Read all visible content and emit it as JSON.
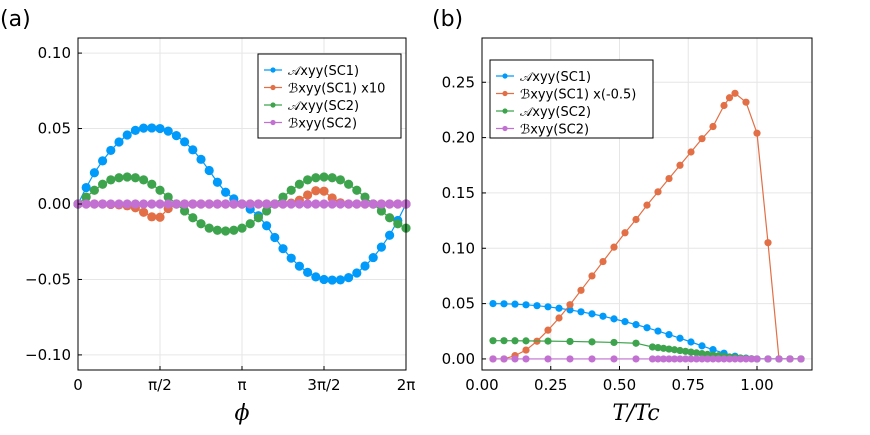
{
  "chart_data": [
    {
      "type": "scatter",
      "panel_label": "(a)",
      "xlabel": "ϕ",
      "ylabel": "",
      "xlim": [
        0,
        6.2832
      ],
      "ylim": [
        -0.11,
        0.11
      ],
      "x_tick_values": [
        0,
        1.5708,
        3.1416,
        4.7124,
        6.2832
      ],
      "x_tick_labels": [
        "0",
        "π/2",
        "π",
        "3π/2",
        "2π"
      ],
      "y_tick_values": [
        -0.1,
        -0.05,
        0.0,
        0.05,
        0.1
      ],
      "y_tick_labels": [
        "−0.10",
        "−0.05",
        "0.00",
        "0.05",
        "0.10"
      ],
      "grid": true,
      "legend_position": "top-right",
      "series": [
        {
          "name": "𝒜xyy(SC1)",
          "color": "#009AFA",
          "x": [
            0,
            0.1571,
            0.3142,
            0.4712,
            0.6283,
            0.7854,
            0.9425,
            1.0996,
            1.2566,
            1.4137,
            1.5708,
            1.7279,
            1.885,
            2.042,
            2.1991,
            2.3562,
            2.5133,
            2.6704,
            2.8274,
            2.9845,
            3.1416,
            3.2987,
            3.4558,
            3.6128,
            3.7699,
            3.927,
            4.0841,
            4.2412,
            4.3982,
            4.5553,
            4.7124,
            4.8695,
            5.0265,
            5.1836,
            5.3407,
            5.4978,
            5.6549,
            5.8119,
            5.969,
            6.1261,
            6.2832
          ],
          "y": [
            0,
            0.0109,
            0.0207,
            0.0286,
            0.0355,
            0.0411,
            0.0457,
            0.0488,
            0.0503,
            0.0504,
            0.05,
            0.0483,
            0.0453,
            0.0412,
            0.0359,
            0.0296,
            0.0222,
            0.0144,
            0.0078,
            0.0034,
            0,
            -0.0034,
            -0.0078,
            -0.0144,
            -0.0222,
            -0.0296,
            -0.0359,
            -0.0412,
            -0.0453,
            -0.0483,
            -0.05,
            -0.0504,
            -0.0503,
            -0.0488,
            -0.0457,
            -0.0411,
            -0.0355,
            -0.0286,
            -0.0207,
            -0.0109,
            0
          ]
        },
        {
          "name": "ℬxyy(SC1) x10",
          "color": "#E26F46",
          "x": [
            0,
            0.1571,
            0.3142,
            0.4712,
            0.6283,
            0.7854,
            0.9425,
            1.0996,
            1.2566,
            1.4137,
            1.5708,
            1.7279,
            1.885,
            2.042,
            2.1991,
            2.3562,
            2.5133,
            2.6704,
            2.8274,
            2.9845,
            3.1416,
            3.2987,
            3.4558,
            3.6128,
            3.7699,
            3.927,
            4.0841,
            4.2412,
            4.3982,
            4.5553,
            4.7124,
            4.8695,
            5.0265,
            5.1836,
            5.3407,
            5.4978,
            5.6549,
            5.8119,
            5.969,
            6.1261,
            6.2832
          ],
          "y": [
            0,
            0,
            0,
            0,
            -0.0003,
            -0.0006,
            -0.0012,
            -0.0025,
            -0.0055,
            -0.0085,
            -0.0088,
            -0.003,
            0,
            0,
            0,
            0,
            0,
            0,
            0,
            0,
            0,
            0,
            0,
            0,
            0,
            0,
            0.0006,
            0.0025,
            0.006,
            0.0088,
            0.0085,
            0.004,
            0.0008,
            0,
            0,
            0,
            0,
            0,
            0,
            0,
            0
          ]
        },
        {
          "name": "𝒜xyy(SC2)",
          "color": "#3DA44D",
          "x": [
            0,
            0.1571,
            0.3142,
            0.4712,
            0.6283,
            0.7854,
            0.9425,
            1.0996,
            1.2566,
            1.4137,
            1.5708,
            1.7279,
            1.885,
            2.042,
            2.1991,
            2.3562,
            2.5133,
            2.6704,
            2.8274,
            2.9845,
            3.1416,
            3.2987,
            3.4558,
            3.6128,
            3.7699,
            3.927,
            4.0841,
            4.2412,
            4.3982,
            4.5553,
            4.7124,
            4.8695,
            5.0265,
            5.1836,
            5.3407,
            5.4978,
            5.6549,
            5.8119,
            5.969,
            6.1261,
            6.2832
          ],
          "y": [
            0,
            0.0046,
            0.0091,
            0.0131,
            0.016,
            0.0174,
            0.0179,
            0.0174,
            0.016,
            0.0131,
            0.0091,
            0.0046,
            0,
            -0.0046,
            -0.0091,
            -0.0131,
            -0.016,
            -0.0174,
            -0.0179,
            -0.0174,
            -0.016,
            -0.0131,
            -0.0091,
            -0.0046,
            0,
            0.0046,
            0.0091,
            0.0131,
            0.016,
            0.0174,
            0.0179,
            0.0174,
            0.016,
            0.0131,
            0.0091,
            0.0046,
            0,
            -0.0046,
            -0.0091,
            -0.0131,
            -0.016
          ]
        },
        {
          "name": "ℬxyy(SC2)",
          "color": "#C271D2",
          "x": [
            0,
            0.1571,
            0.3142,
            0.4712,
            0.6283,
            0.7854,
            0.9425,
            1.0996,
            1.2566,
            1.4137,
            1.5708,
            1.7279,
            1.885,
            2.042,
            2.1991,
            2.3562,
            2.5133,
            2.6704,
            2.8274,
            2.9845,
            3.1416,
            3.2987,
            3.4558,
            3.6128,
            3.7699,
            3.927,
            4.0841,
            4.2412,
            4.3982,
            4.5553,
            4.7124,
            4.8695,
            5.0265,
            5.1836,
            5.3407,
            5.4978,
            5.6549,
            5.8119,
            5.969,
            6.1261,
            6.2832
          ],
          "y": [
            0,
            0,
            0,
            0,
            0,
            0,
            0,
            0,
            0,
            0,
            0,
            0,
            0,
            0,
            0,
            0,
            0,
            0,
            0,
            0,
            0,
            0,
            0,
            0,
            0,
            0,
            0,
            0,
            0,
            0,
            0,
            0,
            0,
            0,
            0,
            0,
            0,
            0,
            0,
            0,
            0
          ]
        }
      ]
    },
    {
      "type": "line",
      "panel_label": "(b)",
      "xlabel": "T/Tc",
      "ylabel": "",
      "xlim": [
        0,
        1.2
      ],
      "ylim": [
        -0.01,
        0.29
      ],
      "x_tick_values": [
        0,
        0.25,
        0.5,
        0.75,
        1.0
      ],
      "x_tick_labels": [
        "0.00",
        "0.25",
        "0.50",
        "0.75",
        "1.00"
      ],
      "y_tick_values": [
        0,
        0.05,
        0.1,
        0.15,
        0.2,
        0.25
      ],
      "y_tick_labels": [
        "0.00",
        "0.05",
        "0.10",
        "0.15",
        "0.20",
        "0.25"
      ],
      "grid": true,
      "legend_position": "top-left",
      "series": [
        {
          "name": "𝒜xyy(SC1)",
          "color": "#009AFA",
          "x": [
            0.04,
            0.08,
            0.12,
            0.16,
            0.2,
            0.24,
            0.28,
            0.32,
            0.36,
            0.4,
            0.44,
            0.48,
            0.52,
            0.56,
            0.6,
            0.64,
            0.68,
            0.72,
            0.76,
            0.8,
            0.84,
            0.88,
            0.92,
            0.96,
            1.0,
            1.04,
            1.08,
            1.12,
            1.16
          ],
          "y": [
            0.05,
            0.0498,
            0.0495,
            0.0489,
            0.0481,
            0.0471,
            0.0458,
            0.0443,
            0.0426,
            0.0407,
            0.0386,
            0.0362,
            0.0337,
            0.031,
            0.0282,
            0.0252,
            0.022,
            0.0187,
            0.0153,
            0.0118,
            0.0084,
            0.0052,
            0.0025,
            0.0008,
            0,
            0,
            0,
            0,
            0
          ]
        },
        {
          "name": "ℬxyy(SC1) x(-0.5)",
          "color": "#E26F46",
          "x": [
            0.04,
            0.08,
            0.12,
            0.16,
            0.2,
            0.24,
            0.28,
            0.32,
            0.36,
            0.4,
            0.44,
            0.48,
            0.52,
            0.56,
            0.6,
            0.64,
            0.68,
            0.72,
            0.76,
            0.8,
            0.84,
            0.88,
            0.9,
            0.92,
            0.96,
            1.0,
            1.04,
            1.08,
            1.12,
            1.16
          ],
          "y": [
            0,
            0,
            0.003,
            0.008,
            0.016,
            0.026,
            0.037,
            0.049,
            0.062,
            0.075,
            0.088,
            0.101,
            0.114,
            0.126,
            0.139,
            0.151,
            0.163,
            0.175,
            0.187,
            0.199,
            0.21,
            0.229,
            0.236,
            0.24,
            0.232,
            0.204,
            0.105,
            0,
            0,
            0
          ]
        },
        {
          "name": "𝒜xyy(SC2)",
          "color": "#3DA44D",
          "x": [
            0.04,
            0.08,
            0.12,
            0.16,
            0.24,
            0.32,
            0.4,
            0.48,
            0.56,
            0.62,
            0.64,
            0.66,
            0.68,
            0.7,
            0.72,
            0.74,
            0.76,
            0.78,
            0.8,
            0.82,
            0.84,
            0.86,
            0.88,
            0.9,
            0.92,
            0.94,
            0.96,
            0.98,
            1.0,
            1.04,
            1.08,
            1.12,
            1.16
          ],
          "y": [
            0.0165,
            0.0165,
            0.0164,
            0.0163,
            0.0161,
            0.0158,
            0.0154,
            0.0149,
            0.0142,
            0.0108,
            0.0102,
            0.0096,
            0.0089,
            0.0083,
            0.0076,
            0.0069,
            0.0062,
            0.0055,
            0.0048,
            0.0041,
            0.0035,
            0.0029,
            0.0023,
            0.0018,
            0.0013,
            0.0009,
            0.0005,
            0.0002,
            0,
            0,
            0,
            0,
            0
          ]
        },
        {
          "name": "ℬxyy(SC2)",
          "color": "#C271D2",
          "x": [
            0.04,
            0.08,
            0.12,
            0.16,
            0.24,
            0.32,
            0.4,
            0.48,
            0.56,
            0.62,
            0.64,
            0.66,
            0.68,
            0.7,
            0.72,
            0.74,
            0.76,
            0.78,
            0.8,
            0.82,
            0.84,
            0.86,
            0.88,
            0.9,
            0.92,
            0.94,
            0.96,
            0.98,
            1.0,
            1.04,
            1.08,
            1.12,
            1.16
          ],
          "y": [
            0,
            0,
            0,
            0,
            0,
            0,
            0,
            0,
            0,
            0,
            0,
            0,
            0,
            0,
            0,
            0,
            0,
            0,
            0,
            0,
            0,
            0,
            0,
            0,
            0,
            0,
            0,
            0,
            0,
            0,
            0,
            0,
            0
          ]
        }
      ]
    }
  ]
}
